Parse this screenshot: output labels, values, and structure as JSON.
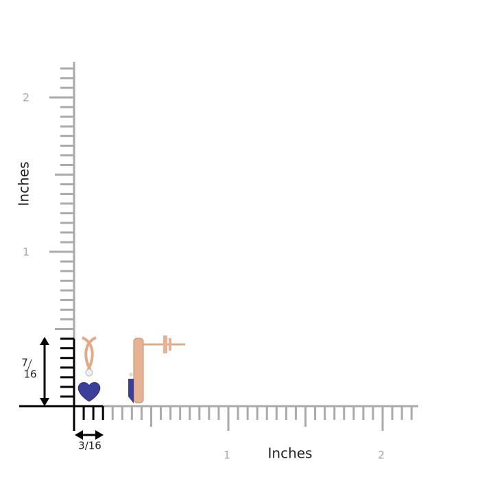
{
  "y_axis": {
    "label": "Inches",
    "ticks": [
      "2",
      "1"
    ]
  },
  "x_axis": {
    "label": "Inches",
    "ticks": [
      "1",
      "2"
    ]
  },
  "dimensions": {
    "height": {
      "numerator": "7",
      "denominator": "16"
    },
    "width": "3/16"
  }
}
